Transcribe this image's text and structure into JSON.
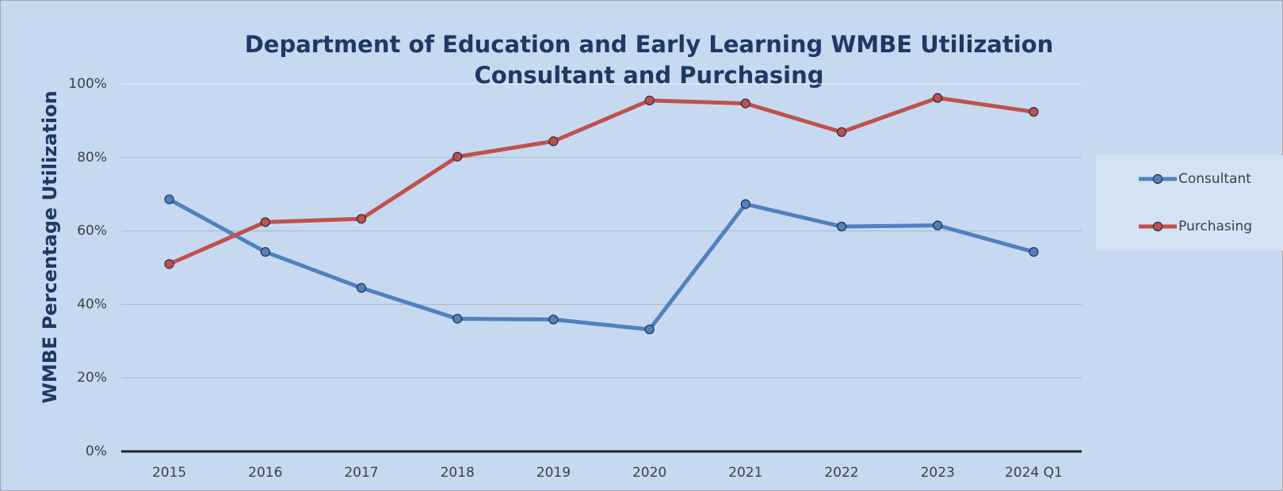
{
  "chart_data": {
    "type": "line",
    "title": "Department of Education and Early Learning WMBE Utilization",
    "subtitle": "Consultant and Purchasing",
    "y_label": "WMBE Percentage Utilization",
    "categories": [
      "2015",
      "2016",
      "2017",
      "2018",
      "2019",
      "2020",
      "2021",
      "2022",
      "2023",
      "2024 Q1"
    ],
    "series": [
      {
        "name": "Consultant",
        "color": "#4f81bd",
        "values": [
          68.6,
          54.3,
          44.5,
          36.1,
          35.9,
          33.2,
          67.3,
          61.2,
          61.5,
          54.3
        ]
      },
      {
        "name": "Purchasing",
        "color": "#c0504d",
        "values": [
          51.0,
          62.4,
          63.3,
          80.2,
          84.4,
          95.5,
          94.7,
          86.9,
          96.2,
          92.4
        ]
      }
    ],
    "ylim": [
      0,
      100
    ],
    "yticks": [
      {
        "value": 0,
        "label": "0%"
      },
      {
        "value": 20,
        "label": "20%"
      },
      {
        "value": 40,
        "label": "40%"
      },
      {
        "value": 60,
        "label": "60%"
      },
      {
        "value": 80,
        "label": "80%"
      },
      {
        "value": 100,
        "label": "100%"
      }
    ],
    "grid": true,
    "legend": "right"
  }
}
